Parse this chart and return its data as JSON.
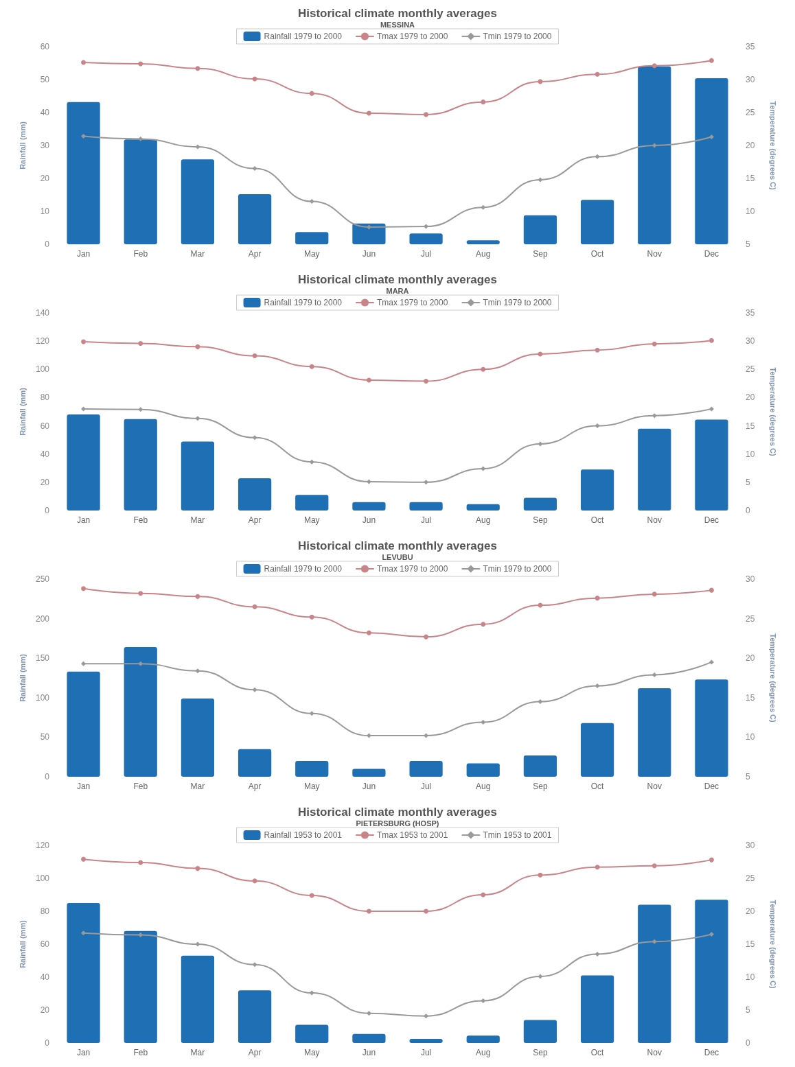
{
  "chart_data": [
    {
      "type": "bar",
      "title": "Historical climate monthly averages",
      "subtitle": "MESSINA",
      "ylabel": "Rainfall (mm)",
      "y2label": "Temperature (degrees C)",
      "categories": [
        "Jan",
        "Feb",
        "Mar",
        "Apr",
        "May",
        "Jun",
        "Jul",
        "Aug",
        "Sep",
        "Oct",
        "Nov",
        "Dec"
      ],
      "series": [
        {
          "name": "Rainfall 1979 to 2000",
          "color": "#1f6fb4",
          "values": [
            43.2,
            31.8,
            25.8,
            15.2,
            3.7,
            6.3,
            3.3,
            1.2,
            8.8,
            13.5,
            54,
            50.4
          ]
        },
        {
          "name": "Tmax 1979 to 2000",
          "type": "line",
          "axis": "y2",
          "marker": "circle",
          "color": "#c9848a",
          "values": [
            32.6,
            32.4,
            31.7,
            30.1,
            27.9,
            24.9,
            24.7,
            26.6,
            29.7,
            30.8,
            32.1,
            32.9
          ]
        },
        {
          "name": "Tmin 1979 to 2000",
          "type": "line",
          "axis": "y2",
          "marker": "diamond",
          "color": "#999999",
          "values": [
            21.4,
            21.0,
            19.8,
            16.5,
            11.5,
            7.6,
            7.7,
            10.6,
            14.8,
            18.3,
            20.0,
            21.3
          ]
        }
      ],
      "ylim": [
        0,
        60
      ],
      "yticks": [
        0,
        10,
        20,
        30,
        40,
        50,
        60
      ],
      "y2lim": [
        5,
        35
      ],
      "y2ticks": [
        5,
        10,
        15,
        20,
        25,
        30,
        35
      ],
      "grid": false,
      "legend": "top",
      "line_style": "solid"
    },
    {
      "type": "bar",
      "title": "Historical climate monthly averages",
      "subtitle": "MARA",
      "ylabel": "Rainfall (mm)",
      "y2label": "Temperature (degrees C)",
      "categories": [
        "Jan",
        "Feb",
        "Mar",
        "Apr",
        "May",
        "Jun",
        "Jul",
        "Aug",
        "Sep",
        "Oct",
        "Nov",
        "Dec"
      ],
      "series": [
        {
          "name": "Rainfall 1979 to 2000",
          "color": "#1f6fb4",
          "values": [
            68,
            64.8,
            48.9,
            22.8,
            11,
            6,
            6,
            4.5,
            9,
            29,
            58,
            64.4
          ]
        },
        {
          "name": "Tmax 1979 to 2000",
          "type": "line",
          "axis": "y2",
          "marker": "circle",
          "color": "#c9848a",
          "values": [
            29.9,
            29.6,
            29.0,
            27.4,
            25.5,
            23.1,
            22.9,
            25.0,
            27.7,
            28.4,
            29.5,
            30.1
          ]
        },
        {
          "name": "Tmin 1979 to 2000",
          "type": "line",
          "axis": "y2",
          "marker": "diamond",
          "color": "#999999",
          "values": [
            18.0,
            17.9,
            16.3,
            12.9,
            8.6,
            5.1,
            5.0,
            7.4,
            11.8,
            15.0,
            16.8,
            18.0
          ]
        }
      ],
      "ylim": [
        0,
        140
      ],
      "yticks": [
        0,
        20,
        40,
        60,
        80,
        100,
        120,
        140
      ],
      "y2lim": [
        0,
        35
      ],
      "y2ticks": [
        0,
        5,
        10,
        15,
        20,
        25,
        30,
        35
      ],
      "grid": false,
      "legend": "top",
      "line_style": "solid"
    },
    {
      "type": "bar",
      "title": "Historical climate monthly averages",
      "subtitle": "LEVUBU",
      "ylabel": "Rainfall (mm)",
      "y2label": "Temperature (degrees C)",
      "categories": [
        "Jan",
        "Feb",
        "Mar",
        "Apr",
        "May",
        "Jun",
        "Jul",
        "Aug",
        "Sep",
        "Oct",
        "Nov",
        "Dec"
      ],
      "series": [
        {
          "name": "Rainfall 1979 to 2000",
          "color": "#1f6fb4",
          "values": [
            133,
            164,
            99,
            35,
            20,
            10,
            20,
            17,
            27,
            68,
            112,
            123
          ]
        },
        {
          "name": "Tmax 1979 to 2000",
          "type": "line",
          "axis": "y2",
          "marker": "circle",
          "color": "#c9848a",
          "values": [
            28.8,
            28.2,
            27.8,
            26.5,
            25.2,
            23.2,
            22.7,
            24.3,
            26.7,
            27.6,
            28.1,
            28.6
          ]
        },
        {
          "name": "Tmin 1979 to 2000",
          "type": "line",
          "axis": "y2",
          "marker": "diamond",
          "color": "#999999",
          "values": [
            19.3,
            19.3,
            18.4,
            16.0,
            13.0,
            10.2,
            10.2,
            11.9,
            14.5,
            16.5,
            17.9,
            19.5
          ]
        }
      ],
      "ylim": [
        0,
        250
      ],
      "yticks": [
        0,
        50,
        100,
        150,
        200,
        250
      ],
      "y2lim": [
        5,
        30
      ],
      "y2ticks": [
        5,
        10,
        15,
        20,
        25,
        30
      ],
      "grid": false,
      "legend": "top",
      "line_style": "solid"
    },
    {
      "type": "bar",
      "title": "Historical climate monthly averages",
      "subtitle": "PIETERSBURG (HOSP)",
      "ylabel": "Rainfall (mm)",
      "y2label": "Temperature (degrees C)",
      "categories": [
        "Jan",
        "Feb",
        "Mar",
        "Apr",
        "May",
        "Jun",
        "Jul",
        "Aug",
        "Sep",
        "Oct",
        "Nov",
        "Dec"
      ],
      "series": [
        {
          "name": "Rainfall 1953 to 2001",
          "color": "#1f6fb4",
          "values": [
            85,
            68,
            53,
            32,
            11,
            5.5,
            2.5,
            4.5,
            14,
            41,
            84,
            87
          ]
        },
        {
          "name": "Tmax 1953 to 2001",
          "type": "line",
          "axis": "y2",
          "marker": "circle",
          "color": "#c9848a",
          "values": [
            27.9,
            27.4,
            26.5,
            24.6,
            22.4,
            20.0,
            20.0,
            22.5,
            25.5,
            26.7,
            26.9,
            27.8
          ]
        },
        {
          "name": "Tmin 1953 to 2001",
          "type": "line",
          "axis": "y2",
          "marker": "diamond",
          "color": "#999999",
          "values": [
            16.7,
            16.4,
            15.0,
            11.9,
            7.6,
            4.5,
            4.1,
            6.4,
            10.1,
            13.5,
            15.4,
            16.5
          ]
        }
      ],
      "ylim": [
        0,
        120
      ],
      "yticks": [
        0,
        20,
        40,
        60,
        80,
        100,
        120
      ],
      "y2lim": [
        0,
        30
      ],
      "y2ticks": [
        0,
        5,
        10,
        15,
        20,
        25,
        30
      ],
      "grid": false,
      "legend": "top",
      "line_style": "solid"
    }
  ]
}
